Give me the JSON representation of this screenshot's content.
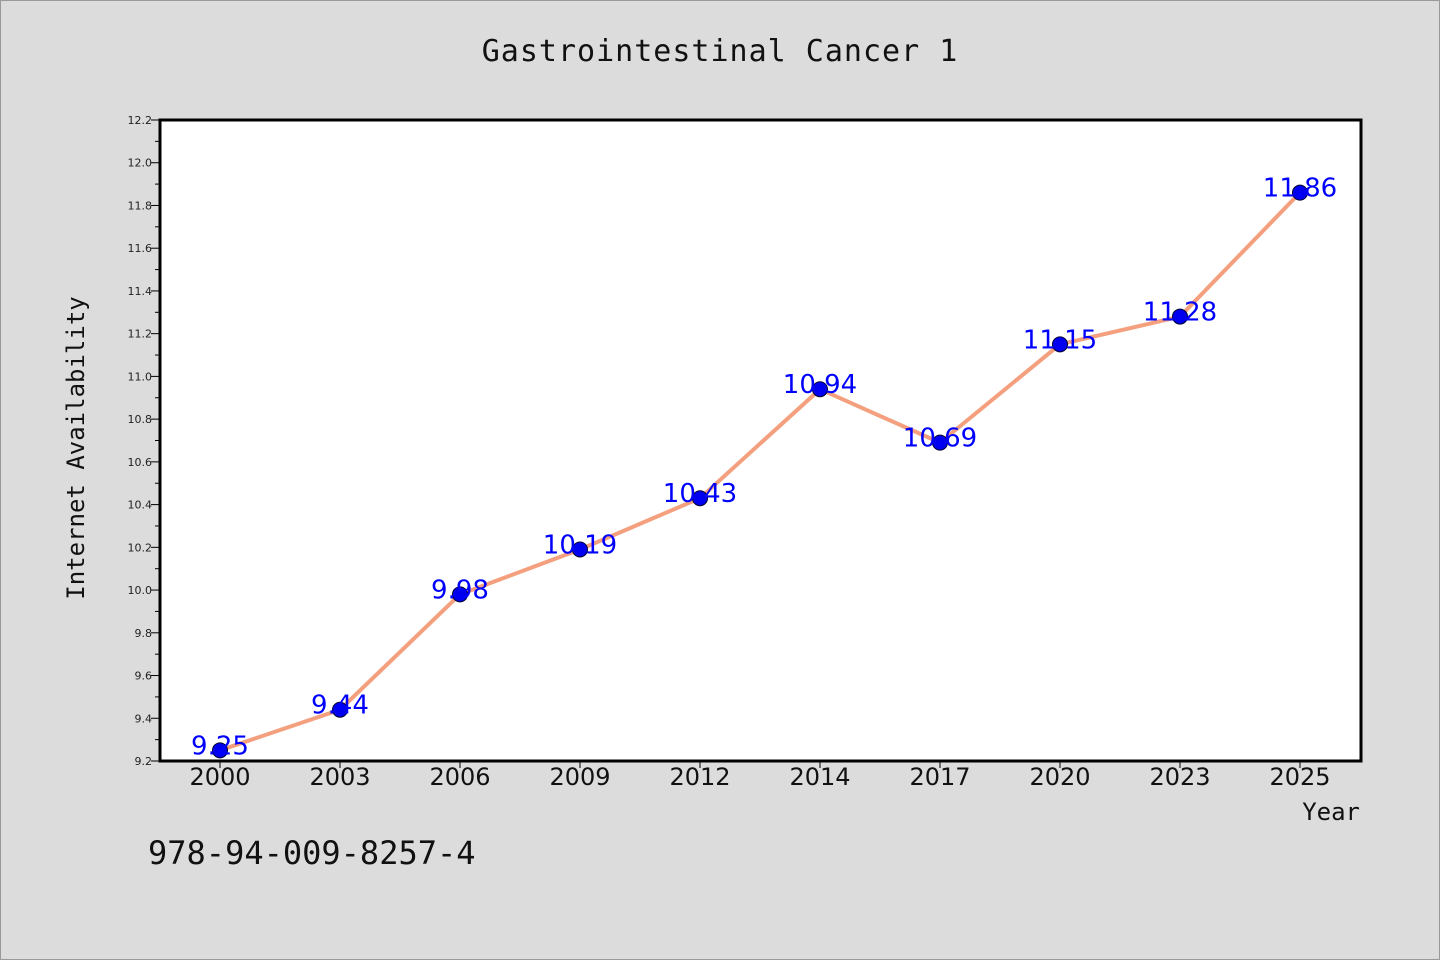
{
  "chart_data": {
    "type": "line",
    "title": "Gastrointestinal Cancer 1",
    "xlabel": "Year",
    "ylabel": "Internet Availability",
    "categories": [
      "2000",
      "2003",
      "2006",
      "2009",
      "2012",
      "2014",
      "2017",
      "2020",
      "2023",
      "2025"
    ],
    "series": [
      {
        "values": [
          9.25,
          9.44,
          9.98,
          10.19,
          10.43,
          10.94,
          10.69,
          11.15,
          11.28,
          11.86
        ]
      }
    ],
    "ylim": [
      9.2,
      12.2
    ],
    "yticks": [
      "9.2",
      "9.4",
      "9.6",
      "9.8",
      "10.0",
      "10.2",
      "10.4",
      "10.6",
      "10.8",
      "11.0",
      "11.2",
      "11.4",
      "11.6",
      "11.8",
      "12.0",
      "12.2"
    ],
    "data_labels": [
      "9.25",
      "9.44",
      "9.98",
      "10.19",
      "10.43",
      "10.94",
      "10.69",
      "11.15",
      "11.28",
      "11.86"
    ],
    "grid": false,
    "colors": {
      "line": "#f4a07e",
      "marker": "#0000ee",
      "label": "#0000ff",
      "background": "#dcdcdc",
      "plot_background": "#ffffff"
    }
  },
  "footer": {
    "isbn": "978-94-009-8257-4"
  }
}
